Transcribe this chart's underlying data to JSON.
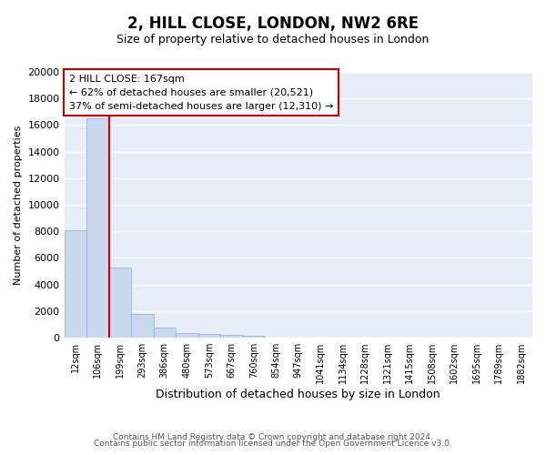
{
  "title": "2, HILL CLOSE, LONDON, NW2 6RE",
  "subtitle": "Size of property relative to detached houses in London",
  "xlabel": "Distribution of detached houses by size in London",
  "ylabel": "Number of detached properties",
  "bar_color": "#c8d8ee",
  "bar_edge_color": "#8ab0d8",
  "background_color": "#e8eef8",
  "grid_color": "#ffffff",
  "categories": [
    "12sqm",
    "106sqm",
    "199sqm",
    "293sqm",
    "386sqm",
    "480sqm",
    "573sqm",
    "667sqm",
    "760sqm",
    "854sqm",
    "947sqm",
    "1041sqm",
    "1134sqm",
    "1228sqm",
    "1321sqm",
    "1415sqm",
    "1508sqm",
    "1602sqm",
    "1695sqm",
    "1789sqm",
    "1882sqm"
  ],
  "values": [
    8100,
    16500,
    5300,
    1800,
    750,
    350,
    280,
    220,
    170,
    0,
    0,
    0,
    0,
    0,
    0,
    0,
    0,
    0,
    0,
    0,
    0
  ],
  "vline_x": 1.5,
  "vline_color": "#cc0000",
  "annotation_line1": "2 HILL CLOSE: 167sqm",
  "annotation_line2": "← 62% of detached houses are smaller (20,521)",
  "annotation_line3": "37% of semi-detached houses are larger (12,310) →",
  "annotation_box_edgecolor": "#cc0000",
  "ylim": [
    0,
    20000
  ],
  "yticks": [
    0,
    2000,
    4000,
    6000,
    8000,
    10000,
    12000,
    14000,
    16000,
    18000,
    20000
  ],
  "title_fontsize": 12,
  "subtitle_fontsize": 9,
  "xlabel_fontsize": 9,
  "ylabel_fontsize": 8,
  "tick_fontsize": 8,
  "xtick_fontsize": 7,
  "footer_line1": "Contains HM Land Registry data © Crown copyright and database right 2024.",
  "footer_line2": "Contains public sector information licensed under the Open Government Licence v3.0.",
  "footer_fontsize": 6.5
}
